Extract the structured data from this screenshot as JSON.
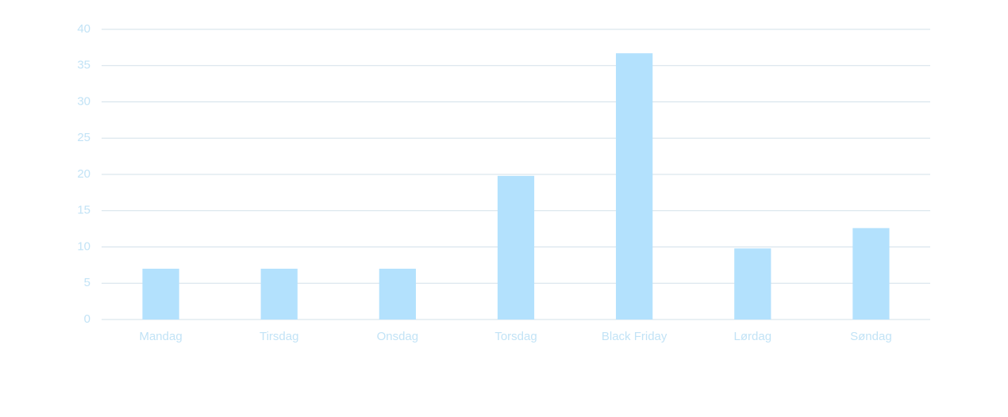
{
  "chart_data": {
    "type": "bar",
    "categories": [
      "Mandag",
      "Tirsdag",
      "Onsdag",
      "Torsdag",
      "Black Friday",
      "Lørdag",
      "Søndag"
    ],
    "values": [
      7,
      7,
      7,
      19.8,
      36.7,
      9.8,
      12.6
    ],
    "color": "#b3e1fd",
    "ylim": [
      0,
      40
    ],
    "yticks": [
      0,
      5,
      10,
      15,
      20,
      25,
      30,
      35,
      40
    ],
    "grid": true
  }
}
